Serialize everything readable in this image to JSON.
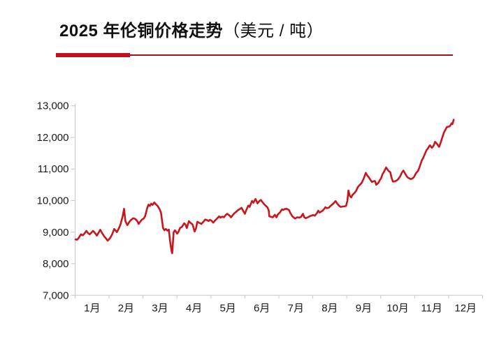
{
  "header": {
    "title_main": "2025 年伦铜价格走势",
    "title_unit": "（美元 / 吨）",
    "accent_color": "#c1121e",
    "rule_color": "#9e141c"
  },
  "chart_data": {
    "type": "line",
    "title": "2025 年伦铜价格走势（美元/吨）",
    "ylabel": "美元/吨",
    "xlabel": "",
    "legend": "none",
    "grid": "off",
    "line_color": "#c8161c",
    "axis_color": "#c8c8c8",
    "ylim": [
      7000,
      13000
    ],
    "y_tick_values": [
      13000,
      12000,
      11000,
      10000,
      9000,
      8000,
      7000
    ],
    "y_tick_labels": [
      "13,000",
      "12,000",
      "11,000",
      "10,000",
      "9,000",
      "8,000",
      "7,000"
    ],
    "categories": [
      "1月",
      "2月",
      "3月",
      "4月",
      "5月",
      "6月",
      "7月",
      "8月",
      "9月",
      "10月",
      "11月",
      "12月"
    ],
    "x_months_range": [
      0,
      12
    ],
    "points": [
      [
        0.01,
        8770
      ],
      [
        0.06,
        8760
      ],
      [
        0.1,
        8810
      ],
      [
        0.17,
        8930
      ],
      [
        0.23,
        8900
      ],
      [
        0.29,
        8980
      ],
      [
        0.33,
        9040
      ],
      [
        0.39,
        8960
      ],
      [
        0.43,
        8930
      ],
      [
        0.49,
        9000
      ],
      [
        0.53,
        9040
      ],
      [
        0.6,
        8950
      ],
      [
        0.64,
        8890
      ],
      [
        0.7,
        9000
      ],
      [
        0.74,
        9075
      ],
      [
        0.8,
        8960
      ],
      [
        0.86,
        8860
      ],
      [
        0.91,
        8800
      ],
      [
        0.96,
        8730
      ],
      [
        1.02,
        8800
      ],
      [
        1.05,
        8850
      ],
      [
        1.09,
        8930
      ],
      [
        1.15,
        9100
      ],
      [
        1.19,
        9050
      ],
      [
        1.23,
        9000
      ],
      [
        1.3,
        9150
      ],
      [
        1.34,
        9260
      ],
      [
        1.4,
        9500
      ],
      [
        1.44,
        9740
      ],
      [
        1.48,
        9350
      ],
      [
        1.54,
        9220
      ],
      [
        1.58,
        9300
      ],
      [
        1.63,
        9370
      ],
      [
        1.71,
        9440
      ],
      [
        1.77,
        9420
      ],
      [
        1.83,
        9350
      ],
      [
        1.87,
        9260
      ],
      [
        1.93,
        9350
      ],
      [
        1.97,
        9400
      ],
      [
        2.02,
        9430
      ],
      [
        2.06,
        9500
      ],
      [
        2.12,
        9750
      ],
      [
        2.16,
        9870
      ],
      [
        2.2,
        9830
      ],
      [
        2.24,
        9900
      ],
      [
        2.28,
        9860
      ],
      [
        2.33,
        9940
      ],
      [
        2.37,
        9890
      ],
      [
        2.43,
        9830
      ],
      [
        2.49,
        9720
      ],
      [
        2.53,
        9610
      ],
      [
        2.59,
        9130
      ],
      [
        2.63,
        9060
      ],
      [
        2.67,
        9100
      ],
      [
        2.72,
        9050
      ],
      [
        2.76,
        9080
      ],
      [
        2.8,
        8690
      ],
      [
        2.84,
        8400
      ],
      [
        2.86,
        8330
      ],
      [
        2.9,
        8990
      ],
      [
        2.94,
        9060
      ],
      [
        2.98,
        9000
      ],
      [
        3.0,
        8950
      ],
      [
        3.04,
        9000
      ],
      [
        3.09,
        9130
      ],
      [
        3.15,
        9170
      ],
      [
        3.21,
        9280
      ],
      [
        3.25,
        9240
      ],
      [
        3.29,
        9130
      ],
      [
        3.35,
        9350
      ],
      [
        3.39,
        9300
      ],
      [
        3.46,
        9240
      ],
      [
        3.52,
        9020
      ],
      [
        3.56,
        9120
      ],
      [
        3.6,
        9330
      ],
      [
        3.66,
        9290
      ],
      [
        3.72,
        9260
      ],
      [
        3.77,
        9320
      ],
      [
        3.83,
        9400
      ],
      [
        3.89,
        9380
      ],
      [
        3.93,
        9350
      ],
      [
        3.97,
        9390
      ],
      [
        4.01,
        9370
      ],
      [
        4.07,
        9300
      ],
      [
        4.11,
        9360
      ],
      [
        4.18,
        9430
      ],
      [
        4.24,
        9500
      ],
      [
        4.28,
        9460
      ],
      [
        4.34,
        9490
      ],
      [
        4.38,
        9470
      ],
      [
        4.44,
        9550
      ],
      [
        4.48,
        9580
      ],
      [
        4.55,
        9520
      ],
      [
        4.59,
        9470
      ],
      [
        4.65,
        9550
      ],
      [
        4.69,
        9600
      ],
      [
        4.75,
        9650
      ],
      [
        4.79,
        9690
      ],
      [
        4.85,
        9730
      ],
      [
        4.9,
        9770
      ],
      [
        4.96,
        9650
      ],
      [
        5.0,
        9580
      ],
      [
        5.04,
        9700
      ],
      [
        5.1,
        9840
      ],
      [
        5.14,
        9800
      ],
      [
        5.21,
        9990
      ],
      [
        5.25,
        9930
      ],
      [
        5.31,
        10050
      ],
      [
        5.35,
        9970
      ],
      [
        5.37,
        9910
      ],
      [
        5.43,
        9990
      ],
      [
        5.47,
        10020
      ],
      [
        5.51,
        9960
      ],
      [
        5.58,
        9870
      ],
      [
        5.62,
        9830
      ],
      [
        5.66,
        9790
      ],
      [
        5.7,
        9700
      ],
      [
        5.72,
        9500
      ],
      [
        5.78,
        9480
      ],
      [
        5.82,
        9470
      ],
      [
        5.88,
        9550
      ],
      [
        5.93,
        9470
      ],
      [
        5.97,
        9560
      ],
      [
        6.03,
        9620
      ],
      [
        6.09,
        9720
      ],
      [
        6.13,
        9700
      ],
      [
        6.17,
        9730
      ],
      [
        6.23,
        9740
      ],
      [
        6.3,
        9700
      ],
      [
        6.34,
        9600
      ],
      [
        6.4,
        9500
      ],
      [
        6.44,
        9460
      ],
      [
        6.48,
        9430
      ],
      [
        6.54,
        9470
      ],
      [
        6.6,
        9460
      ],
      [
        6.65,
        9480
      ],
      [
        6.71,
        9580
      ],
      [
        6.75,
        9470
      ],
      [
        6.79,
        9440
      ],
      [
        6.85,
        9470
      ],
      [
        6.91,
        9500
      ],
      [
        6.95,
        9520
      ],
      [
        7.01,
        9540
      ],
      [
        7.06,
        9520
      ],
      [
        7.12,
        9600
      ],
      [
        7.16,
        9680
      ],
      [
        7.2,
        9620
      ],
      [
        7.26,
        9660
      ],
      [
        7.31,
        9700
      ],
      [
        7.37,
        9790
      ],
      [
        7.41,
        9760
      ],
      [
        7.47,
        9770
      ],
      [
        7.51,
        9820
      ],
      [
        7.57,
        9875
      ],
      [
        7.61,
        9910
      ],
      [
        7.67,
        9985
      ],
      [
        7.72,
        9900
      ],
      [
        7.78,
        9830
      ],
      [
        7.82,
        9800
      ],
      [
        7.88,
        9810
      ],
      [
        7.94,
        9820
      ],
      [
        7.98,
        9830
      ],
      [
        8.02,
        10000
      ],
      [
        8.05,
        10320
      ],
      [
        8.09,
        10150
      ],
      [
        8.13,
        10100
      ],
      [
        8.17,
        10180
      ],
      [
        8.23,
        10240
      ],
      [
        8.27,
        10300
      ],
      [
        8.33,
        10430
      ],
      [
        8.37,
        10480
      ],
      [
        8.44,
        10560
      ],
      [
        8.5,
        10700
      ],
      [
        8.56,
        10880
      ],
      [
        8.6,
        10800
      ],
      [
        8.64,
        10750
      ],
      [
        8.7,
        10650
      ],
      [
        8.74,
        10590
      ],
      [
        8.79,
        10610
      ],
      [
        8.83,
        10620
      ],
      [
        8.87,
        10500
      ],
      [
        8.93,
        10560
      ],
      [
        8.97,
        10640
      ],
      [
        9.01,
        10700
      ],
      [
        9.05,
        10830
      ],
      [
        9.09,
        10900
      ],
      [
        9.16,
        11050
      ],
      [
        9.2,
        10980
      ],
      [
        9.24,
        10930
      ],
      [
        9.28,
        10900
      ],
      [
        9.32,
        10720
      ],
      [
        9.36,
        10600
      ],
      [
        9.42,
        10610
      ],
      [
        9.49,
        10650
      ],
      [
        9.53,
        10700
      ],
      [
        9.57,
        10760
      ],
      [
        9.63,
        10900
      ],
      [
        9.67,
        10950
      ],
      [
        9.71,
        10870
      ],
      [
        9.77,
        10760
      ],
      [
        9.81,
        10720
      ],
      [
        9.88,
        10680
      ],
      [
        9.94,
        10700
      ],
      [
        9.98,
        10750
      ],
      [
        10.04,
        10870
      ],
      [
        10.1,
        10940
      ],
      [
        10.14,
        11050
      ],
      [
        10.21,
        11270
      ],
      [
        10.25,
        11350
      ],
      [
        10.31,
        11500
      ],
      [
        10.35,
        11600
      ],
      [
        10.39,
        11650
      ],
      [
        10.43,
        11720
      ],
      [
        10.45,
        11750
      ],
      [
        10.49,
        11690
      ],
      [
        10.51,
        11670
      ],
      [
        10.56,
        11740
      ],
      [
        10.6,
        11860
      ],
      [
        10.64,
        11820
      ],
      [
        10.68,
        11760
      ],
      [
        10.72,
        11700
      ],
      [
        10.76,
        11820
      ],
      [
        10.8,
        11950
      ],
      [
        10.86,
        12150
      ],
      [
        10.91,
        12250
      ],
      [
        10.95,
        12330
      ],
      [
        10.99,
        12340
      ],
      [
        11.03,
        12350
      ],
      [
        11.07,
        12410
      ],
      [
        11.09,
        12450
      ],
      [
        11.11,
        12420
      ],
      [
        11.13,
        12480
      ],
      [
        11.15,
        12560
      ]
    ]
  }
}
